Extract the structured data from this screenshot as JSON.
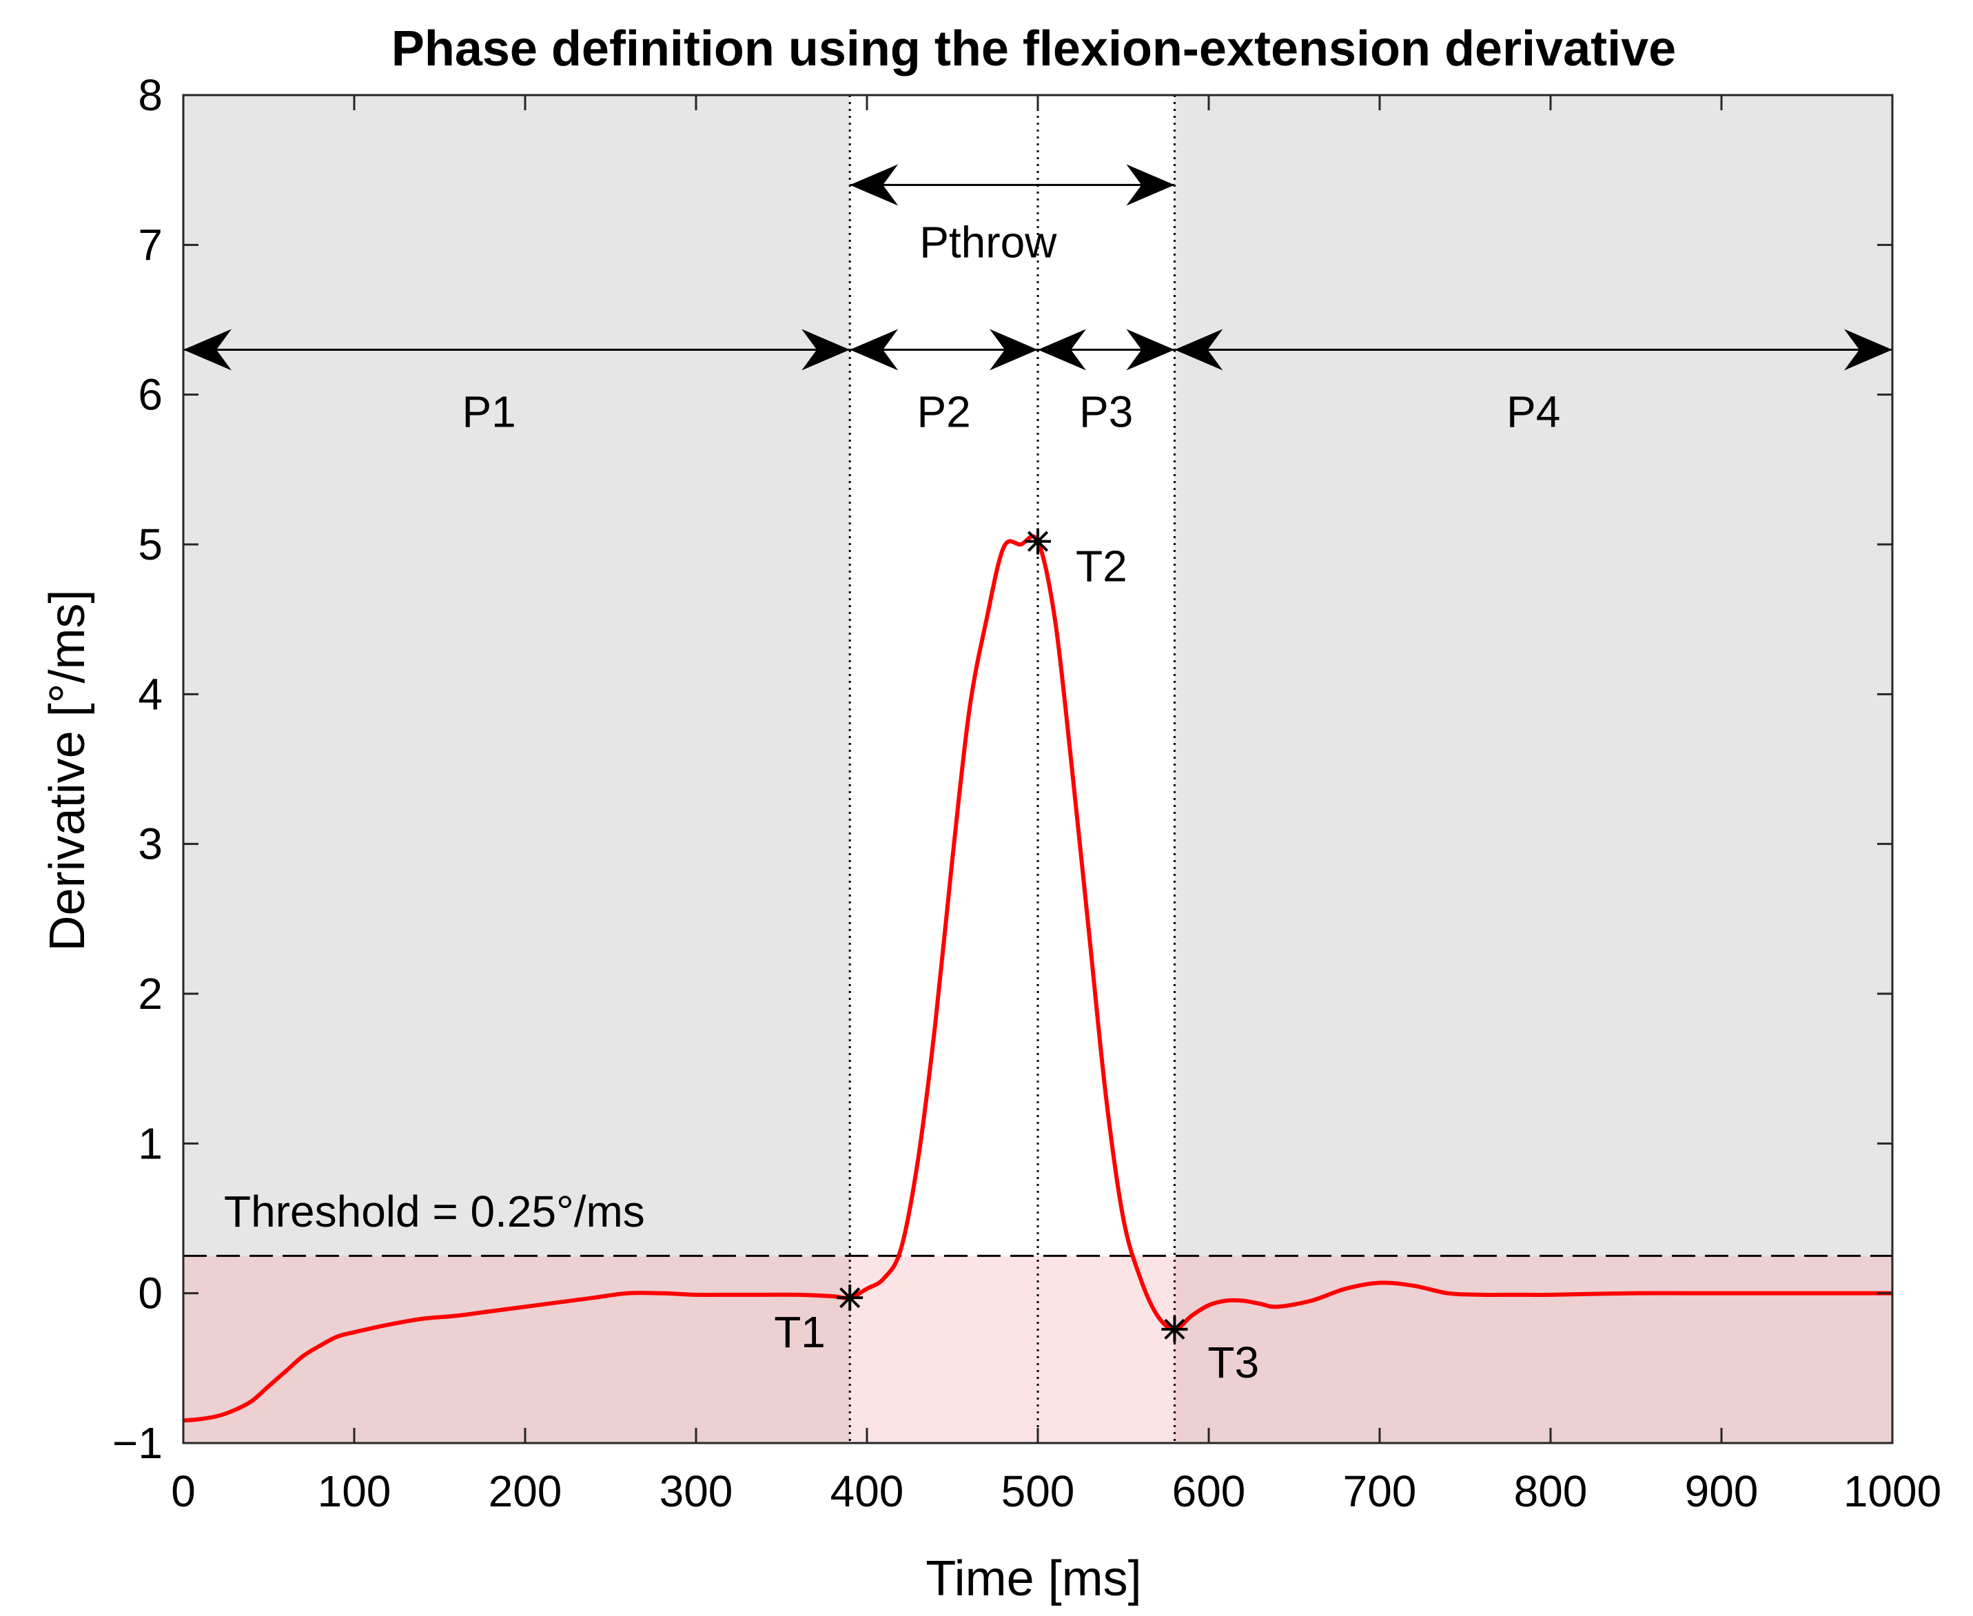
{
  "chart_data": {
    "type": "line",
    "title": "Phase definition using the flexion-extension derivative",
    "xlabel": "Time [ms]",
    "ylabel": "Derivative [°/ms]",
    "xlim": [
      0,
      1000
    ],
    "ylim": [
      -1,
      8
    ],
    "xticks": [
      0,
      100,
      200,
      300,
      400,
      500,
      600,
      700,
      800,
      900,
      1000
    ],
    "yticks": [
      -1,
      0,
      1,
      2,
      3,
      4,
      5,
      6,
      7,
      8
    ],
    "xtick_labels": [
      "0",
      "100",
      "200",
      "300",
      "400",
      "500",
      "600",
      "700",
      "800",
      "900",
      "1000"
    ],
    "ytick_labels": [
      "−1",
      "0",
      "1",
      "2",
      "3",
      "4",
      "5",
      "6",
      "7",
      "8"
    ],
    "grid": false,
    "series": [
      {
        "name": "Derivative",
        "color": "#ff0000",
        "x": [
          0,
          10,
          20,
          30,
          40,
          50,
          60,
          70,
          80,
          90,
          100,
          120,
          140,
          160,
          180,
          200,
          220,
          240,
          260,
          280,
          300,
          320,
          340,
          360,
          380,
          390,
          400,
          410,
          420,
          430,
          440,
          450,
          460,
          470,
          480,
          490,
          500,
          510,
          520,
          530,
          540,
          550,
          560,
          570,
          580,
          590,
          600,
          610,
          620,
          630,
          640,
          660,
          680,
          700,
          720,
          740,
          760,
          780,
          800,
          850,
          900,
          950,
          1000
        ],
        "values": [
          -0.85,
          -0.84,
          -0.82,
          -0.78,
          -0.72,
          -0.62,
          -0.52,
          -0.42,
          -0.35,
          -0.29,
          -0.26,
          -0.21,
          -0.17,
          -0.15,
          -0.12,
          -0.09,
          -0.06,
          -0.03,
          0.0,
          0.0,
          -0.01,
          -0.01,
          -0.01,
          -0.01,
          -0.02,
          -0.03,
          0.03,
          0.1,
          0.3,
          0.9,
          1.8,
          2.9,
          3.9,
          4.5,
          4.98,
          5.0,
          5.02,
          4.5,
          3.5,
          2.4,
          1.3,
          0.5,
          0.1,
          -0.15,
          -0.24,
          -0.15,
          -0.08,
          -0.05,
          -0.05,
          -0.07,
          -0.09,
          -0.05,
          0.03,
          0.07,
          0.05,
          0.0,
          -0.01,
          -0.01,
          -0.01,
          0.0,
          0.0,
          0.0,
          0.0
        ]
      }
    ],
    "threshold": {
      "value": 0.25,
      "label": "Threshold = 0.25°/ms"
    },
    "event_lines": [
      390,
      500,
      580
    ],
    "markers": [
      {
        "label": "T1",
        "x": 390,
        "y": -0.03
      },
      {
        "label": "T2",
        "x": 500,
        "y": 5.02
      },
      {
        "label": "T3",
        "x": 580,
        "y": -0.24
      }
    ],
    "shaded_regions": [
      {
        "name": "phase-shade-p1",
        "x0": 0,
        "x1": 390,
        "y0": 0.25,
        "y1": 8,
        "color": "#e6e6e6"
      },
      {
        "name": "phase-shade-p4",
        "x0": 580,
        "x1": 1000,
        "y0": 0.25,
        "y1": 8,
        "color": "#e6e6e6"
      },
      {
        "name": "below-threshold-shade-left",
        "x0": 0,
        "x1": 390,
        "y0": -1,
        "y1": 0.25,
        "color": "#ecd0d2"
      },
      {
        "name": "below-threshold-shade-mid",
        "x0": 390,
        "x1": 580,
        "y0": -1,
        "y1": 0.25,
        "color": "#fce4e6"
      },
      {
        "name": "below-threshold-shade-right",
        "x0": 580,
        "x1": 1000,
        "y0": -1,
        "y1": 0.25,
        "color": "#ecd0d2"
      }
    ],
    "phases": [
      {
        "label": "P1",
        "x0": 0,
        "x1": 390,
        "y": 6.3
      },
      {
        "label": "P2",
        "x0": 390,
        "x1": 500,
        "y": 6.3
      },
      {
        "label": "P3",
        "x0": 500,
        "x1": 580,
        "y": 6.3
      },
      {
        "label": "P4",
        "x0": 580,
        "x1": 1000,
        "y": 6.3
      }
    ],
    "pthrow": {
      "label": "Pthrow",
      "x0": 390,
      "x1": 580,
      "y": 7.4
    }
  }
}
